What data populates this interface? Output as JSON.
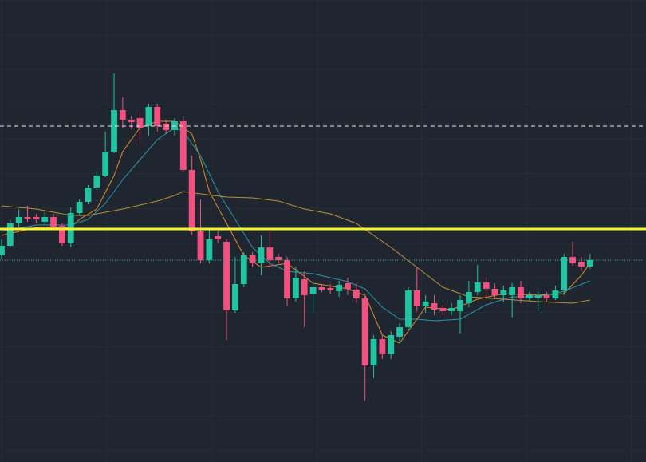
{
  "chart_data": {
    "type": "candlestick",
    "xlim": [
      -0.18,
      74.47
    ],
    "ylim": [
      0,
      579
    ],
    "up_color": "#22c3a0",
    "down_color": "#f0517e",
    "open": [
      259,
      271,
      299,
      307,
      307,
      301,
      307,
      296,
      274,
      312,
      326,
      344,
      359,
      389,
      441,
      429,
      431,
      421,
      445,
      424,
      416,
      427,
      366,
      289,
      253,
      283,
      276,
      190,
      223,
      259,
      249,
      269,
      257,
      253,
      205,
      229,
      211,
      219,
      218,
      214,
      224,
      216,
      205,
      121,
      154,
      135,
      157,
      169,
      215,
      195,
      199,
      193,
      189,
      189,
      199,
      213,
      225,
      217,
      209,
      209,
      219,
      205,
      206,
      209,
      205,
      215,
      257,
      251,
      245
    ],
    "high": [
      279,
      304,
      317,
      321,
      311,
      313,
      311,
      299,
      319,
      329,
      347,
      364,
      414,
      487,
      457,
      434,
      439,
      449,
      449,
      429,
      431,
      434,
      384,
      329,
      291,
      289,
      279,
      257,
      263,
      263,
      284,
      291,
      261,
      257,
      245,
      239,
      227,
      223,
      223,
      227,
      231,
      224,
      209,
      159,
      159,
      164,
      174,
      219,
      244,
      209,
      209,
      197,
      199,
      209,
      227,
      247,
      231,
      224,
      221,
      224,
      227,
      213,
      214,
      213,
      221,
      261,
      276,
      257,
      261
    ],
    "low": [
      254,
      269,
      294,
      301,
      299,
      297,
      291,
      271,
      269,
      309,
      323,
      341,
      357,
      387,
      419,
      417,
      399,
      409,
      414,
      411,
      409,
      364,
      284,
      249,
      249,
      274,
      153,
      187,
      219,
      244,
      234,
      244,
      249,
      195,
      201,
      169,
      187,
      213,
      211,
      207,
      209,
      199,
      77,
      105,
      129,
      129,
      149,
      164,
      189,
      187,
      184,
      184,
      184,
      161,
      194,
      209,
      207,
      204,
      201,
      181,
      199,
      201,
      189,
      201,
      203,
      209,
      246,
      239,
      242
    ],
    "close": [
      271,
      299,
      307,
      305,
      304,
      307,
      295,
      274,
      312,
      326,
      344,
      359,
      389,
      441,
      429,
      426,
      419,
      445,
      421,
      416,
      427,
      366,
      289,
      253,
      279,
      279,
      190,
      223,
      259,
      249,
      269,
      253,
      253,
      205,
      231,
      209,
      219,
      216,
      215,
      222,
      217,
      205,
      121,
      154,
      135,
      159,
      169,
      215,
      195,
      201,
      191,
      189,
      193,
      203,
      213,
      225,
      217,
      209,
      215,
      219,
      205,
      209,
      209,
      205,
      215,
      257,
      249,
      245,
      253
    ],
    "series": [
      {
        "color": "#e0902c",
        "x": [
          0,
          4,
          8,
          9,
          11,
          13,
          14,
          16,
          18,
          20,
          22,
          23,
          24,
          26,
          28,
          30,
          33,
          36,
          40,
          42,
          44,
          46,
          47,
          49,
          52,
          55,
          58,
          62,
          65,
          67,
          68
        ],
        "values": [
          284,
          294,
          294,
          304,
          317,
          359,
          389,
          419,
          427,
          427,
          411,
          379,
          339,
          299,
          259,
          244,
          249,
          224,
          217,
          209,
          159,
          149,
          164,
          194,
          191,
          204,
          211,
          209,
          211,
          234,
          249
        ]
      },
      {
        "color": "#2a95a8",
        "x": [
          0,
          4,
          8,
          10,
          12,
          14,
          16,
          18,
          20,
          21,
          23,
          25,
          27,
          29,
          31,
          33,
          36,
          40,
          42,
          44,
          46,
          48,
          50,
          53,
          56,
          59,
          62,
          65,
          68
        ],
        "values": [
          289,
          297,
          297,
          304,
          324,
          354,
          379,
          404,
          419,
          414,
          384,
          339,
          304,
          269,
          249,
          239,
          236,
          226,
          217,
          194,
          179,
          179,
          177,
          179,
          197,
          207,
          207,
          214,
          227
        ]
      },
      {
        "color": "#b8923a",
        "x": [
          0,
          4,
          8,
          10,
          14,
          18,
          20,
          21,
          23,
          26,
          29,
          32,
          35,
          38,
          41,
          45,
          48,
          51,
          54,
          58,
          62,
          66,
          68
        ],
        "values": [
          321,
          317,
          309,
          309,
          317,
          327,
          334,
          339,
          336,
          332,
          331,
          327,
          317,
          311,
          299,
          269,
          244,
          219,
          207,
          204,
          201,
          199,
          203
        ]
      }
    ],
    "hlines": [
      {
        "value": 292,
        "color": "#f5f52a",
        "style": "solid"
      },
      {
        "value": 421,
        "color": "#e8e8e8",
        "style": "dashed"
      },
      {
        "value": 253,
        "color": "#3fc1b0",
        "style": "dotted"
      }
    ]
  }
}
